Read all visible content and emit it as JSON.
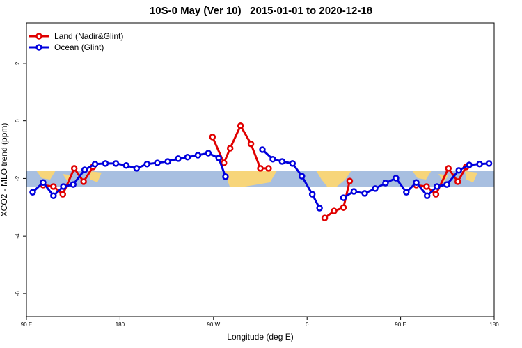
{
  "chart_data": {
    "type": "line",
    "title": "10S-0 May (Ver 10)   2015-01-01 to 2020-12-18",
    "xlabel": "Longitude (deg E)",
    "ylabel": "XCO2 - MLO trend (ppm)",
    "xlim": [
      90,
      540
    ],
    "ylim": [
      -6.8,
      3.4
    ],
    "xticks": [
      {
        "value": 90,
        "label": "90 E"
      },
      {
        "value": 180,
        "label": "180"
      },
      {
        "value": 270,
        "label": "90 W"
      },
      {
        "value": 360,
        "label": "0"
      },
      {
        "value": 450,
        "label": "90 E"
      },
      {
        "value": 540,
        "label": "180"
      }
    ],
    "yticks": [
      2,
      0,
      -2,
      -4,
      -6
    ],
    "legend": "top-left",
    "series": [
      {
        "name": "Land (Nadir&Glint)",
        "color": "#e00000",
        "x": [
          106,
          116,
          125,
          136,
          145,
          154,
          null,
          269,
          280,
          286,
          296,
          306,
          315,
          323,
          null,
          377,
          386,
          395,
          401,
          null,
          465,
          475,
          484,
          496,
          505,
          513
        ],
        "values": [
          -2.23,
          -2.28,
          -2.55,
          -1.65,
          -2.11,
          -1.6,
          null,
          -0.56,
          -1.46,
          -0.95,
          -0.17,
          -0.8,
          -1.65,
          -1.65,
          null,
          -3.37,
          -3.13,
          -3.01,
          -2.09,
          null,
          -2.23,
          -2.28,
          -2.55,
          -1.65,
          -2.11,
          -1.6
        ]
      },
      {
        "name": "Ocean (Glint)",
        "color": "#0000dd",
        "x": [
          96,
          106,
          116,
          125.5,
          135,
          146,
          156,
          166,
          176,
          186,
          196,
          206,
          216,
          226,
          236,
          245,
          255,
          265,
          275,
          281.5,
          null,
          317,
          327,
          336,
          346,
          355,
          365,
          372,
          null,
          395,
          405,
          415.5,
          425.5,
          435.5,
          445.5,
          455.5,
          465,
          475.5,
          485,
          494.5,
          506,
          516,
          526,
          535
        ],
        "values": [
          -2.48,
          -2.14,
          -2.6,
          -2.28,
          -2.21,
          -1.7,
          -1.5,
          -1.48,
          -1.48,
          -1.55,
          -1.65,
          -1.5,
          -1.46,
          -1.41,
          -1.31,
          -1.26,
          -1.19,
          -1.12,
          -1.29,
          -1.94,
          null,
          -1.0,
          -1.33,
          -1.41,
          -1.48,
          -1.92,
          -2.55,
          -3.03,
          null,
          -2.67,
          -2.45,
          -2.52,
          -2.35,
          -2.16,
          -1.99,
          -2.48,
          -2.14,
          -2.6,
          -2.28,
          -2.21,
          -1.72,
          -1.53,
          -1.5,
          -1.48
        ]
      }
    ]
  }
}
